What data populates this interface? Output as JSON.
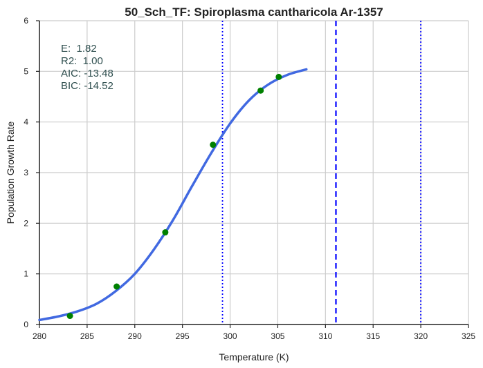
{
  "chart_data": {
    "type": "line",
    "title": "50_Sch_TF: Spiroplasma cantharicola Ar-1357",
    "xlabel": "Temperature (K)",
    "ylabel": "Population Growth Rate",
    "xlim": [
      280,
      325
    ],
    "ylim": [
      0,
      6
    ],
    "xticks": [
      280,
      285,
      290,
      295,
      300,
      305,
      310,
      315,
      320,
      325
    ],
    "yticks": [
      0,
      1,
      2,
      3,
      4,
      5,
      6
    ],
    "grid": true,
    "colors": {
      "fit_line": "#4169e1",
      "points": "#008000",
      "vlines": "#0000ff",
      "grid": "#cccccc",
      "axes": "#222222",
      "annotation": "#2f4f4f"
    },
    "fit_curve": {
      "x": [
        280.0,
        282.0,
        284.0,
        286.0,
        288.0,
        290.0,
        292.0,
        294.0,
        296.0,
        298.0,
        300.0,
        302.0,
        304.0,
        306.0,
        308.0
      ],
      "y": [
        0.09,
        0.16,
        0.26,
        0.41,
        0.66,
        1.0,
        1.48,
        2.06,
        2.73,
        3.38,
        3.97,
        4.43,
        4.74,
        4.93,
        5.04
      ]
    },
    "observed_points": {
      "x": [
        283.2,
        288.1,
        293.2,
        298.2,
        303.2,
        305.1
      ],
      "y": [
        0.17,
        0.75,
        1.82,
        3.55,
        4.62,
        4.89
      ]
    },
    "vlines": [
      {
        "x": 299.2,
        "style": "dotted"
      },
      {
        "x": 311.1,
        "style": "dashed"
      },
      {
        "x": 320.0,
        "style": "dotted"
      }
    ],
    "annotation_lines": [
      "E:  1.82",
      "R2:  1.00",
      "AIC: -13.48",
      "BIC: -14.52"
    ]
  }
}
